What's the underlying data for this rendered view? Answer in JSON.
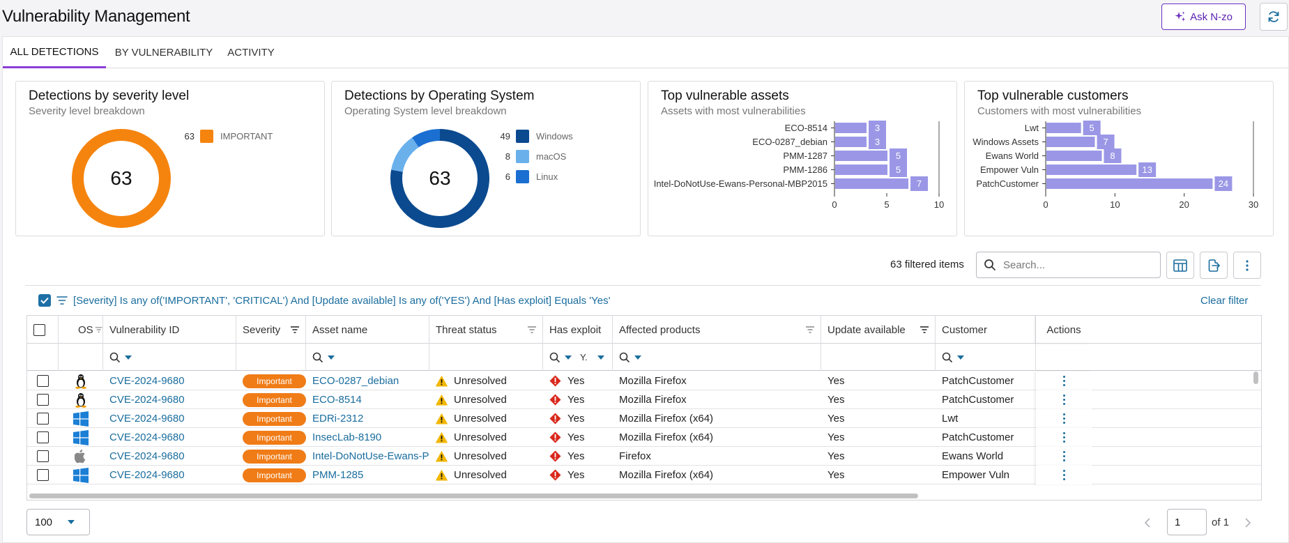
{
  "header": {
    "title": "Vulnerability Management",
    "ask_label": "Ask N-zo"
  },
  "tabs": [
    {
      "label": "ALL DETECTIONS",
      "active": true
    },
    {
      "label": "BY VULNERABILITY",
      "active": false
    },
    {
      "label": "ACTIVITY",
      "active": false
    }
  ],
  "cards": {
    "severity": {
      "title": "Detections by severity level",
      "subtitle": "Severity level breakdown",
      "total": "63",
      "legend": [
        {
          "count": "63",
          "name": "IMPORTANT",
          "color": "#f5840f"
        }
      ]
    },
    "os": {
      "title": "Detections by Operating System",
      "subtitle": "Operating System level breakdown",
      "total": "63",
      "legend": [
        {
          "count": "49",
          "name": "Windows",
          "color": "#0b4a8f"
        },
        {
          "count": "8",
          "name": "macOS",
          "color": "#6ab1ec"
        },
        {
          "count": "6",
          "name": "Linux",
          "color": "#1b6fd1"
        }
      ]
    },
    "assets": {
      "title": "Top vulnerable assets",
      "subtitle": "Assets with most vulnerabilities"
    },
    "customers": {
      "title": "Top vulnerable customers",
      "subtitle": "Customers with most vulnerabilities"
    }
  },
  "chart_data": [
    {
      "type": "pie",
      "title": "Detections by severity level",
      "categories": [
        "IMPORTANT"
      ],
      "values": [
        63
      ],
      "colors": [
        "#f5840f"
      ]
    },
    {
      "type": "pie",
      "title": "Detections by Operating System",
      "categories": [
        "Windows",
        "macOS",
        "Linux"
      ],
      "values": [
        49,
        8,
        6
      ],
      "colors": [
        "#0b4a8f",
        "#6ab1ec",
        "#1b6fd1"
      ]
    },
    {
      "type": "bar",
      "orientation": "horizontal",
      "title": "Top vulnerable assets",
      "categories": [
        "ECO-8514",
        "ECO-0287_debian",
        "PMM-1287",
        "PMM-1286",
        "Intel-DoNotUse-Ewans-Personal-MBP2015"
      ],
      "values": [
        3,
        3,
        5,
        5,
        7
      ],
      "xlim": [
        0,
        10
      ],
      "xticks": [
        "0",
        "5",
        "10"
      ],
      "grid": false,
      "color": "#9b97e6"
    },
    {
      "type": "bar",
      "orientation": "horizontal",
      "title": "Top vulnerable customers",
      "categories": [
        "Lwt",
        "Windows Assets",
        "Ewans World",
        "Empower Vuln",
        "PatchCustomer"
      ],
      "values": [
        5,
        7,
        8,
        13,
        24
      ],
      "xlim": [
        0,
        30
      ],
      "xticks": [
        "0",
        "10",
        "20",
        "30"
      ],
      "grid": false,
      "color": "#9b97e6"
    }
  ],
  "toolbar": {
    "filtered_count": "63 filtered items",
    "search_placeholder": "Search..."
  },
  "filter": {
    "text": "[Severity] Is any of('IMPORTANT', 'CRITICAL') And [Update available] Is any of('YES') And [Has exploit] Equals 'Yes'",
    "clear_label": "Clear filter"
  },
  "table": {
    "columns": [
      "OS",
      "Vulnerability ID",
      "Severity",
      "Asset name",
      "Threat status",
      "Has exploit",
      "Affected products",
      "Update available",
      "Customer",
      "Actions"
    ],
    "exploit_filter_value": "Y.",
    "rows": [
      {
        "os": "linux",
        "vuln_id": "CVE-2024-9680",
        "severity": "Important",
        "asset": "ECO-0287_debian",
        "threat": "Unresolved",
        "exploit": "Yes",
        "product": "Mozilla Firefox",
        "update": "Yes",
        "customer": "PatchCustomer"
      },
      {
        "os": "linux",
        "vuln_id": "CVE-2024-9680",
        "severity": "Important",
        "asset": "ECO-8514",
        "threat": "Unresolved",
        "exploit": "Yes",
        "product": "Mozilla Firefox",
        "update": "Yes",
        "customer": "PatchCustomer"
      },
      {
        "os": "windows",
        "vuln_id": "CVE-2024-9680",
        "severity": "Important",
        "asset": "EDRi-2312",
        "threat": "Unresolved",
        "exploit": "Yes",
        "product": "Mozilla Firefox (x64)",
        "update": "Yes",
        "customer": "Lwt"
      },
      {
        "os": "windows",
        "vuln_id": "CVE-2024-9680",
        "severity": "Important",
        "asset": "InsecLab-8190",
        "threat": "Unresolved",
        "exploit": "Yes",
        "product": "Mozilla Firefox (x64)",
        "update": "Yes",
        "customer": "PatchCustomer"
      },
      {
        "os": "apple",
        "vuln_id": "CVE-2024-9680",
        "severity": "Important",
        "asset": "Intel-DoNotUse-Ewans-Per...",
        "threat": "Unresolved",
        "exploit": "Yes",
        "product": "Firefox",
        "update": "Yes",
        "customer": "Ewans World"
      },
      {
        "os": "windows",
        "vuln_id": "CVE-2024-9680",
        "severity": "Important",
        "asset": "PMM-1285",
        "threat": "Unresolved",
        "exploit": "Yes",
        "product": "Mozilla Firefox (x64)",
        "update": "Yes",
        "customer": "Empower Vuln"
      }
    ]
  },
  "footer": {
    "page_size": "100",
    "page": "1",
    "of_label": "of 1"
  }
}
